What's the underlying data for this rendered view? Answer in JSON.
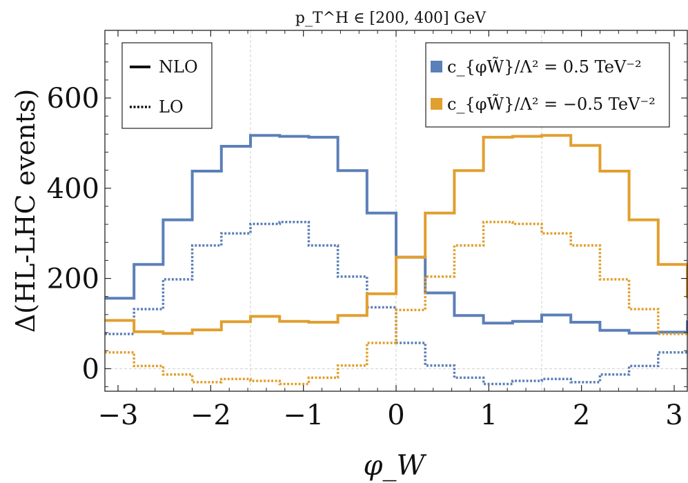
{
  "chart_data": {
    "type": "line",
    "style": "step histogram",
    "title": "p_T^H ∈ [200, 400] GeV",
    "xlabel": "φ_W",
    "ylabel": "Δ(HL-LHC events)",
    "xlim": [
      -3.14159,
      3.14159
    ],
    "ylim": [
      -50,
      750
    ],
    "xticks": [
      -3,
      -2,
      -1,
      0,
      1,
      2,
      3
    ],
    "xtick_labels": [
      "−3",
      "−2",
      "−1",
      "0",
      "1",
      "2",
      "3"
    ],
    "yticks": [
      0,
      200,
      400,
      600
    ],
    "ytick_labels": [
      "0",
      "200",
      "400",
      "600"
    ],
    "reference_lines_x": [
      -1.5708,
      0,
      1.5708
    ],
    "bin_edges": [
      -3.14159,
      -2.82743,
      -2.51327,
      -2.19911,
      -1.88496,
      -1.5708,
      -1.25664,
      -0.94248,
      -0.62832,
      -0.31416,
      0,
      0.31416,
      0.62832,
      0.94248,
      1.25664,
      1.5708,
      1.88496,
      2.19911,
      2.51327,
      2.82743,
      3.14159
    ],
    "series": [
      {
        "name": "c_{φW̃}/Λ² = 0.5 TeV⁻²",
        "order": "NLO",
        "color": "#5b7fb8",
        "values": [
          156,
          231,
          330,
          438,
          493,
          517,
          515,
          513,
          439,
          345,
          247,
          168,
          118,
          101,
          105,
          119,
          103,
          85,
          79,
          81,
          107
        ]
      },
      {
        "name": "c_{φW̃}/Λ² = 0.5 TeV⁻²",
        "order": "LO",
        "color": "#5b7fb8",
        "values": [
          77,
          132,
          198,
          273,
          300,
          321,
          325,
          273,
          204,
          136,
          57,
          7,
          -20,
          -34,
          -27,
          -23,
          -30,
          -13,
          6,
          36,
          38
        ]
      },
      {
        "name": "c_{φW̃}/Λ² = −0.5 TeV⁻²",
        "order": "NLO",
        "color": "#e19f2e",
        "values": [
          107,
          82,
          78,
          86,
          104,
          116,
          105,
          103,
          118,
          166,
          247,
          345,
          439,
          513,
          515,
          517,
          495,
          438,
          330,
          231,
          156
        ]
      },
      {
        "name": "c_{φW̃}/Λ² = −0.5 TeV⁻²",
        "order": "LO",
        "color": "#e19f2e",
        "values": [
          36,
          6,
          -13,
          -30,
          -23,
          -27,
          -34,
          -20,
          7,
          57,
          130,
          204,
          273,
          325,
          321,
          300,
          273,
          198,
          132,
          77,
          77
        ]
      }
    ],
    "legend_line_style": {
      "items": [
        "NLO",
        "LO"
      ],
      "placement": "top-left"
    },
    "legend_colors": {
      "placement": "top-right",
      "items": [
        {
          "label": "c_{φW̃}/Λ² = 0.5 TeV⁻²",
          "color": "#5b7fb8"
        },
        {
          "label": "c_{φW̃}/Λ² = −0.5 TeV⁻²",
          "color": "#e19f2e"
        }
      ]
    }
  }
}
